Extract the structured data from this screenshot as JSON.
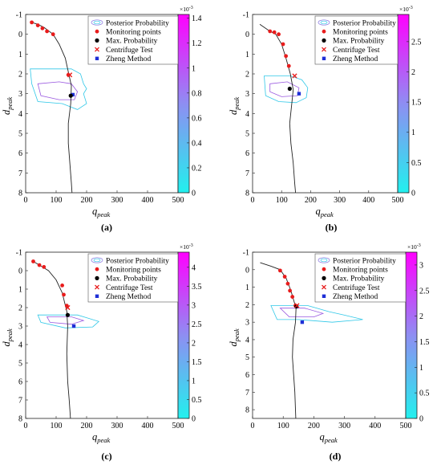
{
  "colors": {
    "cb_low": "#22f0ee",
    "cb_mid": "#8e8ef2",
    "cb_high": "#ff00ff",
    "contour_outer": "#30c8e8",
    "contour_inner": "#9a59e0",
    "monitor": "#e81c1c",
    "maxprob": "#000000",
    "centrifuge": "#e81c1c",
    "zheng": "#1f2fd6",
    "curve": "#222222",
    "legend_ellipse": "#8070e0"
  },
  "legend": {
    "posterior": "Posterior Probability",
    "monitoring": "Monitoring points",
    "maxprob": "Max. Probability",
    "centrifuge": "Centrifuge Test",
    "zheng": "Zheng Method"
  },
  "axis_labels": {
    "x_main": "q",
    "x_sub": "peak",
    "y_main": "d",
    "y_sub": "peak"
  },
  "colorbar_multiplier": "×10",
  "colorbar_exponent": "-3",
  "chart_data": [
    {
      "type": "scatter",
      "caption": "(a)",
      "xlim": [
        0,
        500
      ],
      "ylim": [
        8,
        -1
      ],
      "x_ticks": [
        "0",
        "100",
        "200",
        "300",
        "400",
        "500"
      ],
      "y_ticks": [
        "-1",
        "0",
        "1",
        "2",
        "3",
        "4",
        "5",
        "6",
        "7",
        "8"
      ],
      "colorbar_ticks": [
        "0",
        "0.2",
        "0.4",
        "0.6",
        "0.8",
        "1",
        "1.2",
        "1.4"
      ],
      "colorbar_max": 1.43,
      "curve": [
        [
          20,
          -0.6
        ],
        [
          40,
          -0.5
        ],
        [
          60,
          -0.35
        ],
        [
          90,
          0
        ],
        [
          110,
          0.5
        ],
        [
          130,
          1.2
        ],
        [
          140,
          1.9
        ],
        [
          150,
          2.6
        ],
        [
          148,
          3.5
        ],
        [
          140,
          4.5
        ],
        [
          140,
          5.5
        ],
        [
          145,
          6.5
        ],
        [
          150,
          7.5
        ],
        [
          152,
          8
        ]
      ],
      "monitoring": [
        [
          20,
          -0.6
        ],
        [
          40,
          -0.45
        ],
        [
          55,
          -0.3
        ],
        [
          70,
          -0.15
        ],
        [
          90,
          0
        ],
        [
          140,
          2.05
        ]
      ],
      "max_prob": [
        148,
        3.1
      ],
      "centrifuge": [
        145,
        2.05
      ],
      "zheng": [
        155,
        3.05
      ],
      "contour_outer": [
        [
          15,
          1.75
        ],
        [
          150,
          1.75
        ],
        [
          180,
          2.0
        ],
        [
          190,
          2.5
        ],
        [
          200,
          2.75
        ],
        [
          190,
          3.0
        ],
        [
          200,
          3.5
        ],
        [
          170,
          3.8
        ],
        [
          120,
          3.5
        ],
        [
          40,
          3.4
        ],
        [
          20,
          2.5
        ],
        [
          15,
          1.75
        ]
      ],
      "contour_inner": [
        [
          40,
          2.5
        ],
        [
          110,
          2.4
        ],
        [
          150,
          2.5
        ],
        [
          170,
          2.9
        ],
        [
          160,
          3.3
        ],
        [
          110,
          3.3
        ],
        [
          50,
          3.1
        ],
        [
          40,
          2.5
        ]
      ]
    },
    {
      "type": "scatter",
      "caption": "(b)",
      "xlim": [
        0,
        500
      ],
      "ylim": [
        8,
        -1
      ],
      "x_ticks": [
        "0",
        "100",
        "200",
        "300",
        "400",
        "500"
      ],
      "y_ticks": [
        "-1",
        "0",
        "1",
        "2",
        "3",
        "4",
        "5",
        "6",
        "7",
        "8"
      ],
      "colorbar_ticks": [
        "0",
        "0.5",
        "1",
        "1.5",
        "2",
        "2.5"
      ],
      "colorbar_max": 2.95,
      "curve": [
        [
          25,
          -0.5
        ],
        [
          55,
          -0.2
        ],
        [
          80,
          0
        ],
        [
          100,
          0.5
        ],
        [
          115,
          1.2
        ],
        [
          130,
          2.0
        ],
        [
          140,
          2.8
        ],
        [
          135,
          3.5
        ],
        [
          128,
          4.5
        ],
        [
          132,
          5.5
        ],
        [
          140,
          6.5
        ],
        [
          145,
          7.5
        ],
        [
          148,
          8
        ]
      ],
      "monitoring": [
        [
          60,
          -0.15
        ],
        [
          75,
          -0.1
        ],
        [
          90,
          0
        ],
        [
          105,
          0.5
        ],
        [
          115,
          1.1
        ],
        [
          125,
          1.6
        ]
      ],
      "max_prob": [
        128,
        2.75
      ],
      "centrifuge": [
        145,
        2.1
      ],
      "zheng": [
        160,
        3.0
      ],
      "contour_outer": [
        [
          40,
          2.1
        ],
        [
          130,
          2.1
        ],
        [
          170,
          2.3
        ],
        [
          190,
          2.7
        ],
        [
          185,
          3.2
        ],
        [
          150,
          3.45
        ],
        [
          90,
          3.4
        ],
        [
          45,
          3.1
        ],
        [
          40,
          2.1
        ]
      ],
      "contour_inner": [
        [
          60,
          2.5
        ],
        [
          120,
          2.4
        ],
        [
          160,
          2.7
        ],
        [
          155,
          3.1
        ],
        [
          100,
          3.15
        ],
        [
          60,
          2.9
        ],
        [
          60,
          2.5
        ]
      ]
    },
    {
      "type": "scatter",
      "caption": "(c)",
      "xlim": [
        0,
        500
      ],
      "ylim": [
        8,
        -1
      ],
      "x_ticks": [
        "0",
        "100",
        "200",
        "300",
        "400",
        "500"
      ],
      "y_ticks": [
        "-1",
        "0",
        "1",
        "2",
        "3",
        "4",
        "5",
        "6",
        "7",
        "8"
      ],
      "colorbar_ticks": [
        "0",
        "0.5",
        "1",
        "1.5",
        "2",
        "2.5",
        "3",
        "3.5",
        "4"
      ],
      "colorbar_max": 4.4,
      "curve": [
        [
          25,
          -0.5
        ],
        [
          45,
          -0.3
        ],
        [
          75,
          0
        ],
        [
          100,
          0.5
        ],
        [
          120,
          1.2
        ],
        [
          135,
          2.2
        ],
        [
          138,
          3.0
        ],
        [
          135,
          4.5
        ],
        [
          138,
          6
        ],
        [
          143,
          7
        ],
        [
          147,
          8
        ]
      ],
      "monitoring": [
        [
          25,
          -0.5
        ],
        [
          45,
          -0.3
        ],
        [
          60,
          -0.2
        ],
        [
          120,
          0.8
        ],
        [
          125,
          1.3
        ],
        [
          135,
          1.9
        ]
      ],
      "max_prob": [
        138,
        2.4
      ],
      "centrifuge": [
        138,
        2.0
      ],
      "zheng": [
        158,
        3.0
      ],
      "contour_outer": [
        [
          40,
          2.4
        ],
        [
          170,
          2.4
        ],
        [
          200,
          2.55
        ],
        [
          240,
          2.75
        ],
        [
          220,
          3.05
        ],
        [
          130,
          3.1
        ],
        [
          50,
          2.8
        ],
        [
          40,
          2.4
        ]
      ],
      "contour_inner": [
        [
          70,
          2.5
        ],
        [
          150,
          2.5
        ],
        [
          190,
          2.7
        ],
        [
          150,
          2.9
        ],
        [
          80,
          2.8
        ],
        [
          70,
          2.5
        ]
      ]
    },
    {
      "type": "scatter",
      "caption": "(d)",
      "xlim": [
        0,
        500
      ],
      "ylim": [
        8.5,
        -1
      ],
      "x_ticks": [
        "0",
        "100",
        "200",
        "300",
        "400",
        "500"
      ],
      "y_ticks": [
        "-1",
        "0",
        "1",
        "2",
        "3",
        "4",
        "5",
        "6",
        "7",
        "8"
      ],
      "colorbar_ticks": [
        "0",
        "0.5",
        "1",
        "1.5",
        "2",
        "2.5",
        "3"
      ],
      "colorbar_max": 3.25,
      "curve": [
        [
          25,
          -0.4
        ],
        [
          60,
          -0.2
        ],
        [
          90,
          0
        ],
        [
          110,
          0.5
        ],
        [
          125,
          1.2
        ],
        [
          135,
          1.8
        ],
        [
          142,
          2.2
        ],
        [
          140,
          3
        ],
        [
          132,
          4
        ],
        [
          130,
          5
        ],
        [
          134,
          6
        ],
        [
          138,
          7
        ],
        [
          140,
          8
        ],
        [
          141,
          8.5
        ]
      ],
      "monitoring": [
        [
          90,
          0.05
        ],
        [
          105,
          0.4
        ],
        [
          115,
          0.8
        ],
        [
          122,
          1.2
        ],
        [
          130,
          1.55
        ],
        [
          140,
          2.05
        ]
      ],
      "max_prob": [
        143,
        2.1
      ],
      "centrifuge": [
        145,
        2.05
      ],
      "zheng": [
        162,
        3.0
      ],
      "contour_outer": [
        [
          60,
          2.05
        ],
        [
          180,
          2.05
        ],
        [
          250,
          2.4
        ],
        [
          300,
          2.6
        ],
        [
          360,
          2.85
        ],
        [
          260,
          3.0
        ],
        [
          150,
          2.85
        ],
        [
          80,
          2.85
        ],
        [
          60,
          2.05
        ]
      ],
      "contour_inner": [
        [
          90,
          2.2
        ],
        [
          170,
          2.2
        ],
        [
          230,
          2.5
        ],
        [
          200,
          2.7
        ],
        [
          120,
          2.7
        ],
        [
          90,
          2.2
        ]
      ]
    }
  ]
}
